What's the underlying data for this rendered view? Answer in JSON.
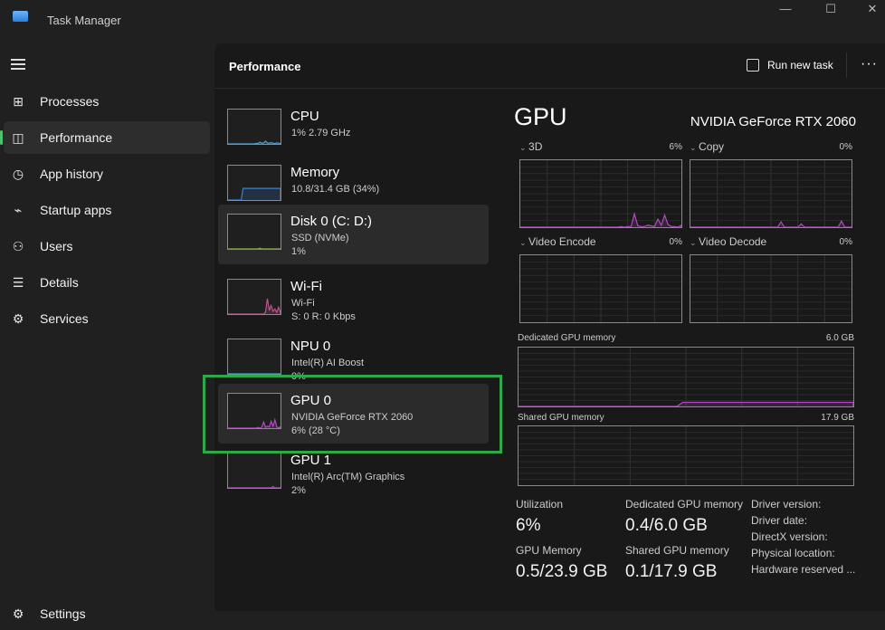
{
  "window": {
    "title": "Task Manager",
    "minimize": "—",
    "maximize": "☐",
    "close": "✕"
  },
  "sidebar": {
    "items": [
      {
        "label": "Processes",
        "icon": "processes-icon",
        "glyph": "⊞"
      },
      {
        "label": "Performance",
        "icon": "performance-icon",
        "glyph": "◫",
        "active": true
      },
      {
        "label": "App history",
        "icon": "app-history-icon",
        "glyph": "◷"
      },
      {
        "label": "Startup apps",
        "icon": "startup-icon",
        "glyph": "⌁"
      },
      {
        "label": "Users",
        "icon": "users-icon",
        "glyph": "⚇"
      },
      {
        "label": "Details",
        "icon": "details-icon",
        "glyph": "☰"
      },
      {
        "label": "Services",
        "icon": "services-icon",
        "glyph": "⚙"
      }
    ],
    "settings": "Settings"
  },
  "header": {
    "title": "Performance",
    "run_task": "Run new task",
    "more": "···"
  },
  "devices": [
    {
      "name": "CPU",
      "sub1": "1% 2.79 GHz",
      "sub2": "",
      "color": "#4a9fd8",
      "history": [
        0,
        0,
        0,
        0,
        0,
        0,
        0,
        0,
        0,
        0,
        0,
        0,
        0,
        0,
        0,
        2,
        1,
        5,
        2,
        3,
        8,
        3,
        2,
        4,
        2,
        1,
        3,
        2,
        1
      ]
    },
    {
      "name": "Memory",
      "sub1": "10.8/31.4 GB (34%)",
      "sub2": "",
      "color": "#3d7fd0",
      "history": [
        0,
        0,
        0,
        0,
        0,
        0,
        0,
        0,
        34,
        34,
        34,
        34,
        34,
        34,
        34,
        34,
        34,
        34,
        34,
        34,
        34,
        34,
        34,
        34,
        34,
        34,
        34,
        34,
        34
      ]
    },
    {
      "name": "Disk 0 (C: D:)",
      "sub1": "SSD (NVMe)",
      "sub2": "1%",
      "color": "#7fb04a",
      "history": [
        0,
        0,
        0,
        0,
        0,
        0,
        0,
        0,
        0,
        0,
        0,
        0,
        0,
        0,
        0,
        0,
        0,
        2,
        0,
        0,
        0,
        0,
        0,
        0,
        0,
        0,
        0,
        0,
        0
      ],
      "selected": true
    },
    {
      "name": "Wi-Fi",
      "sub1": "Wi-Fi",
      "sub2": "S: 0 R: 0 Kbps",
      "color": "#c0538a",
      "history": [
        0,
        0,
        0,
        0,
        0,
        0,
        0,
        0,
        0,
        0,
        0,
        0,
        0,
        0,
        0,
        0,
        0,
        0,
        0,
        0,
        5,
        45,
        10,
        25,
        8,
        15,
        5,
        20,
        3
      ]
    },
    {
      "name": "NPU 0",
      "sub1": "Intel(R) AI Boost",
      "sub2": "0%",
      "color": "#3fa0c0",
      "history": [
        0,
        0,
        0,
        0,
        0,
        0,
        0,
        0,
        0,
        0,
        0,
        0,
        0,
        0,
        0,
        0,
        0,
        0,
        0,
        0,
        0,
        0,
        0,
        0,
        0,
        0,
        0,
        0,
        0
      ]
    },
    {
      "name": "GPU 0",
      "sub1": "NVIDIA GeForce RTX 2060",
      "sub2": "6%  (28 °C)",
      "color": "#b04ac0",
      "history": [
        0,
        0,
        0,
        0,
        0,
        0,
        0,
        0,
        0,
        0,
        0,
        0,
        0,
        0,
        0,
        0,
        2,
        0,
        3,
        18,
        2,
        6,
        3,
        20,
        5,
        24,
        3,
        1,
        4
      ],
      "selected": true
    },
    {
      "name": "GPU 1",
      "sub1": "Intel(R) Arc(TM) Graphics",
      "sub2": "2%",
      "color": "#b04ac0",
      "history": [
        0,
        0,
        0,
        0,
        0,
        0,
        0,
        0,
        0,
        0,
        0,
        0,
        0,
        0,
        0,
        0,
        0,
        0,
        0,
        0,
        0,
        0,
        0,
        0,
        4,
        0,
        0,
        0,
        0
      ]
    }
  ],
  "gpu": {
    "title": "GPU",
    "model": "NVIDIA GeForce RTX 2060",
    "color": "#b04ac0",
    "engines": [
      {
        "label": "3D",
        "pct": "6%",
        "history": [
          0,
          0,
          0,
          0,
          0,
          0,
          0,
          0,
          0,
          0,
          0,
          0,
          0,
          0,
          0,
          0,
          0,
          0,
          0,
          0,
          0,
          0,
          0,
          0,
          0,
          0,
          0,
          0,
          0,
          0,
          1,
          0,
          1,
          1,
          20,
          2,
          1,
          1,
          3,
          2,
          1,
          12,
          3,
          18,
          4,
          1,
          1,
          0,
          3
        ]
      },
      {
        "label": "Copy",
        "pct": "0%",
        "history": [
          0,
          0,
          0,
          0,
          0,
          0,
          0,
          0,
          0,
          0,
          0,
          0,
          0,
          0,
          0,
          0,
          0,
          0,
          0,
          0,
          0,
          0,
          0,
          0,
          0,
          0,
          0,
          8,
          0,
          0,
          0,
          0,
          0,
          5,
          0,
          0,
          0,
          0,
          0,
          0,
          0,
          0,
          0,
          0,
          0,
          9,
          0,
          0,
          0
        ]
      },
      {
        "label": "Video Encode",
        "pct": "0%",
        "history": []
      },
      {
        "label": "Video Decode",
        "pct": "0%",
        "history": []
      }
    ],
    "dedicated": {
      "label": "Dedicated GPU memory",
      "max": "6.0 GB",
      "history": [
        0,
        0,
        0,
        0,
        0,
        0,
        0,
        0,
        0,
        0,
        0,
        0,
        0,
        0,
        0,
        0,
        0,
        0,
        0,
        0,
        0,
        0,
        0,
        0,
        0,
        0,
        0,
        7,
        7,
        7,
        7,
        7,
        7,
        7,
        7,
        7,
        7,
        7,
        7,
        7,
        7,
        7,
        7,
        7,
        7,
        7,
        7,
        7,
        7,
        7,
        7,
        7,
        7,
        7,
        7,
        7
      ]
    },
    "shared": {
      "label": "Shared GPU memory",
      "max": "17.9 GB",
      "history": []
    },
    "stats": {
      "utilization_label": "Utilization",
      "utilization": "6%",
      "dedicated_label": "Dedicated GPU memory",
      "dedicated": "0.4/6.0 GB",
      "gpu_mem_label": "GPU Memory",
      "gpu_mem": "0.5/23.9 GB",
      "shared_label": "Shared GPU memory",
      "shared": "0.1/17.9 GB"
    },
    "info": [
      "Driver version:",
      "Driver date:",
      "DirectX version:",
      "Physical location:",
      "Hardware reserved ..."
    ]
  }
}
